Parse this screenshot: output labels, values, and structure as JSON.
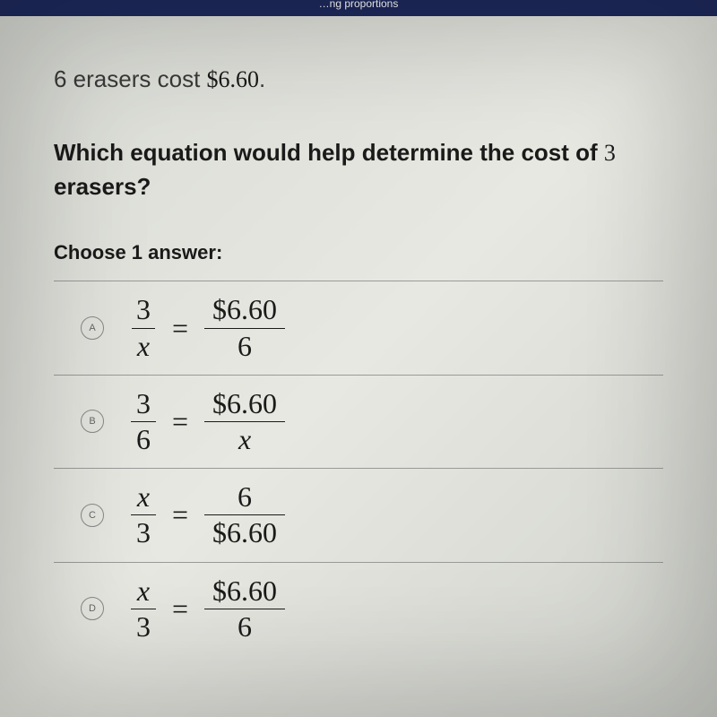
{
  "header": {
    "partial_text": "…ng proportions"
  },
  "problem": {
    "line1_prefix": "6 erasers cost ",
    "line1_cost": "$6.60",
    "line1_suffix": ".",
    "question_part1": "Which equation would help determine the cost of ",
    "question_number": "3",
    "question_part2": " erasers?"
  },
  "choose_label": "Choose 1 answer:",
  "choices": [
    {
      "letter": "A",
      "left_num": "3",
      "left_den": "x",
      "right_num": "$6.60",
      "right_den": "6"
    },
    {
      "letter": "B",
      "left_num": "3",
      "left_den": "6",
      "right_num": "$6.60",
      "right_den": "x"
    },
    {
      "letter": "C",
      "left_num": "x",
      "left_den": "3",
      "right_num": "6",
      "right_den": "$6.60"
    },
    {
      "letter": "D",
      "left_num": "x",
      "left_den": "3",
      "right_num": "$6.60",
      "right_den": "6"
    }
  ],
  "equals_sign": "=",
  "styling": {
    "header_bg": "#1e2a5e",
    "body_bg_gradient": [
      "#d8dad4",
      "#e8e8e2",
      "#d0d2cc"
    ],
    "text_color": "#1a1a1a",
    "muted_text_color": "#3a3a3a",
    "divider_color": "#999999",
    "radio_border_color": "#888888",
    "radio_letter_color": "#666666",
    "problem_fontsize": 26,
    "question_fontsize": 26,
    "choose_fontsize": 22,
    "equation_fontsize": 32,
    "radio_letter_fontsize": 11,
    "equation_font": "Times New Roman",
    "body_font": "-apple-system"
  }
}
